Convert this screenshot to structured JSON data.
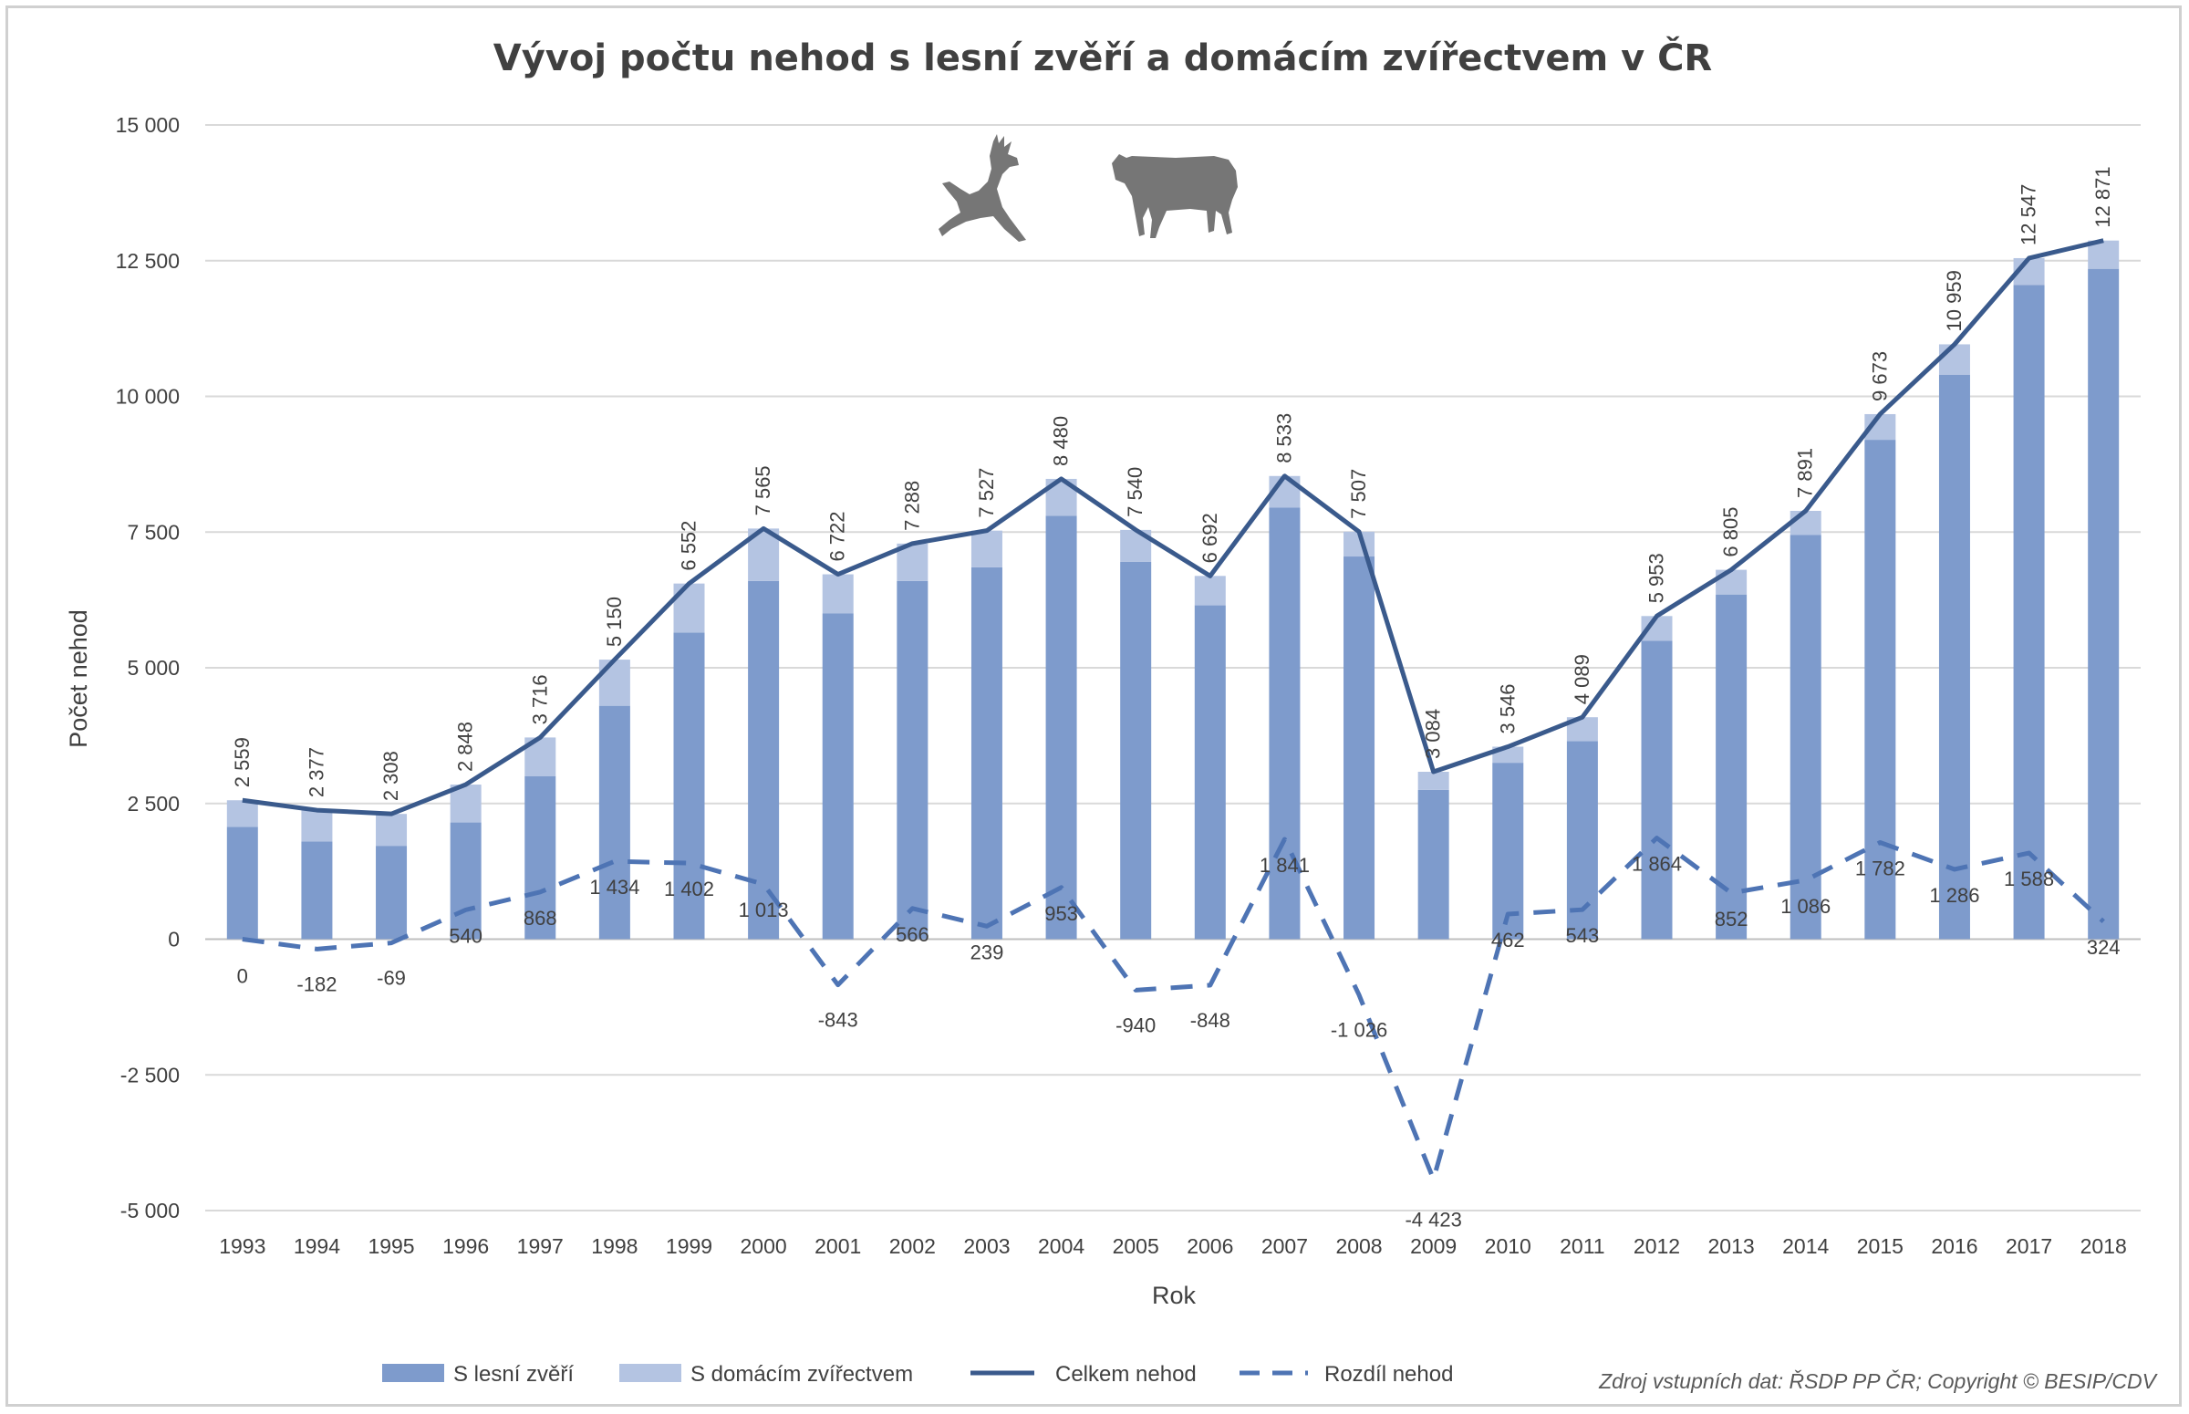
{
  "chart_data": {
    "type": "bar",
    "title": "Vývoj počtu nehod s lesní zvěří a domácím zvířectvem v ČR",
    "xlabel": "Rok",
    "ylabel": "Počet nehod",
    "ylim": [
      -5000,
      15000
    ],
    "y_ticks": [
      15000,
      12500,
      10000,
      7500,
      5000,
      2500,
      0,
      -2500,
      -5000
    ],
    "y_tick_labels": [
      "15 000",
      "12 500",
      "10 000",
      "7 500",
      "5 000",
      "2 500",
      "0",
      "-2 500",
      "-5 000"
    ],
    "categories": [
      "1993",
      "1994",
      "1995",
      "1996",
      "1997",
      "1998",
      "1999",
      "2000",
      "2001",
      "2002",
      "2003",
      "2004",
      "2005",
      "2006",
      "2007",
      "2008",
      "2009",
      "2010",
      "2011",
      "2012",
      "2013",
      "2014",
      "2015",
      "2016",
      "2017",
      "2018"
    ],
    "series": [
      {
        "name": "S lesní zvěří",
        "kind": "stacked-bar",
        "color": "#7e9bcc",
        "values": [
          2070,
          1800,
          1720,
          2150,
          3000,
          4300,
          5650,
          6600,
          6000,
          6600,
          6850,
          7800,
          6950,
          6150,
          7950,
          7050,
          2750,
          3250,
          3650,
          5500,
          6350,
          7450,
          9200,
          10400,
          12050,
          12350
        ]
      },
      {
        "name": "S domácím zvířectvem",
        "kind": "stacked-bar",
        "color": "#b4c4e2",
        "values": [
          489,
          577,
          588,
          698,
          716,
          850,
          902,
          965,
          722,
          688,
          677,
          680,
          590,
          542,
          583,
          457,
          334,
          296,
          439,
          453,
          455,
          441,
          473,
          559,
          497,
          521
        ]
      },
      {
        "name": "Celkem nehod",
        "kind": "line",
        "color": "#3a5a8c",
        "values": [
          2559,
          2377,
          2308,
          2848,
          3716,
          5150,
          6552,
          7565,
          6722,
          7288,
          7527,
          8480,
          7540,
          6692,
          8533,
          7507,
          3084,
          3546,
          4089,
          5953,
          6805,
          7891,
          9673,
          10959,
          12547,
          12871
        ],
        "labels": [
          "2 559",
          "2 377",
          "2 308",
          "2 848",
          "3 716",
          "5 150",
          "6 552",
          "7 565",
          "6 722",
          "7 288",
          "7 527",
          "8 480",
          "7 540",
          "6 692",
          "8 533",
          "7 507",
          "3 084",
          "3 546",
          "4 089",
          "5 953",
          "6 805",
          "7 891",
          "9 673",
          "10 959",
          "12 547",
          "12 871"
        ]
      },
      {
        "name": "Rozdíl nehod",
        "kind": "dashed-line",
        "color": "#4e74b4",
        "values": [
          0,
          -182,
          -69,
          540,
          868,
          1434,
          1402,
          1013,
          -843,
          566,
          239,
          953,
          -940,
          -848,
          1841,
          -1026,
          -4423,
          462,
          543,
          1864,
          852,
          1086,
          1782,
          1286,
          1588,
          324
        ],
        "labels": [
          "0",
          "-182",
          "-69",
          "540",
          "868",
          "1 434",
          "1 402",
          "1 013",
          "-843",
          "566",
          "239",
          "953",
          "-940",
          "-848",
          "1 841",
          "-1 026",
          "-4 423",
          "462",
          "543",
          "1 864",
          "852",
          "1 086",
          "1 782",
          "1 286",
          "1 588",
          "324"
        ]
      }
    ],
    "legend": [
      "S lesní zvěří",
      "S domácím zvířectvem",
      "Celkem nehod",
      "Rozdíl nehod"
    ],
    "legend_position": "bottom",
    "grid": true
  },
  "source_note": "Zdroj vstupních dat: ŘSDP PP ČR; Copyright © BESIP/CDV",
  "icons": [
    "deer-icon",
    "cow-icon"
  ]
}
